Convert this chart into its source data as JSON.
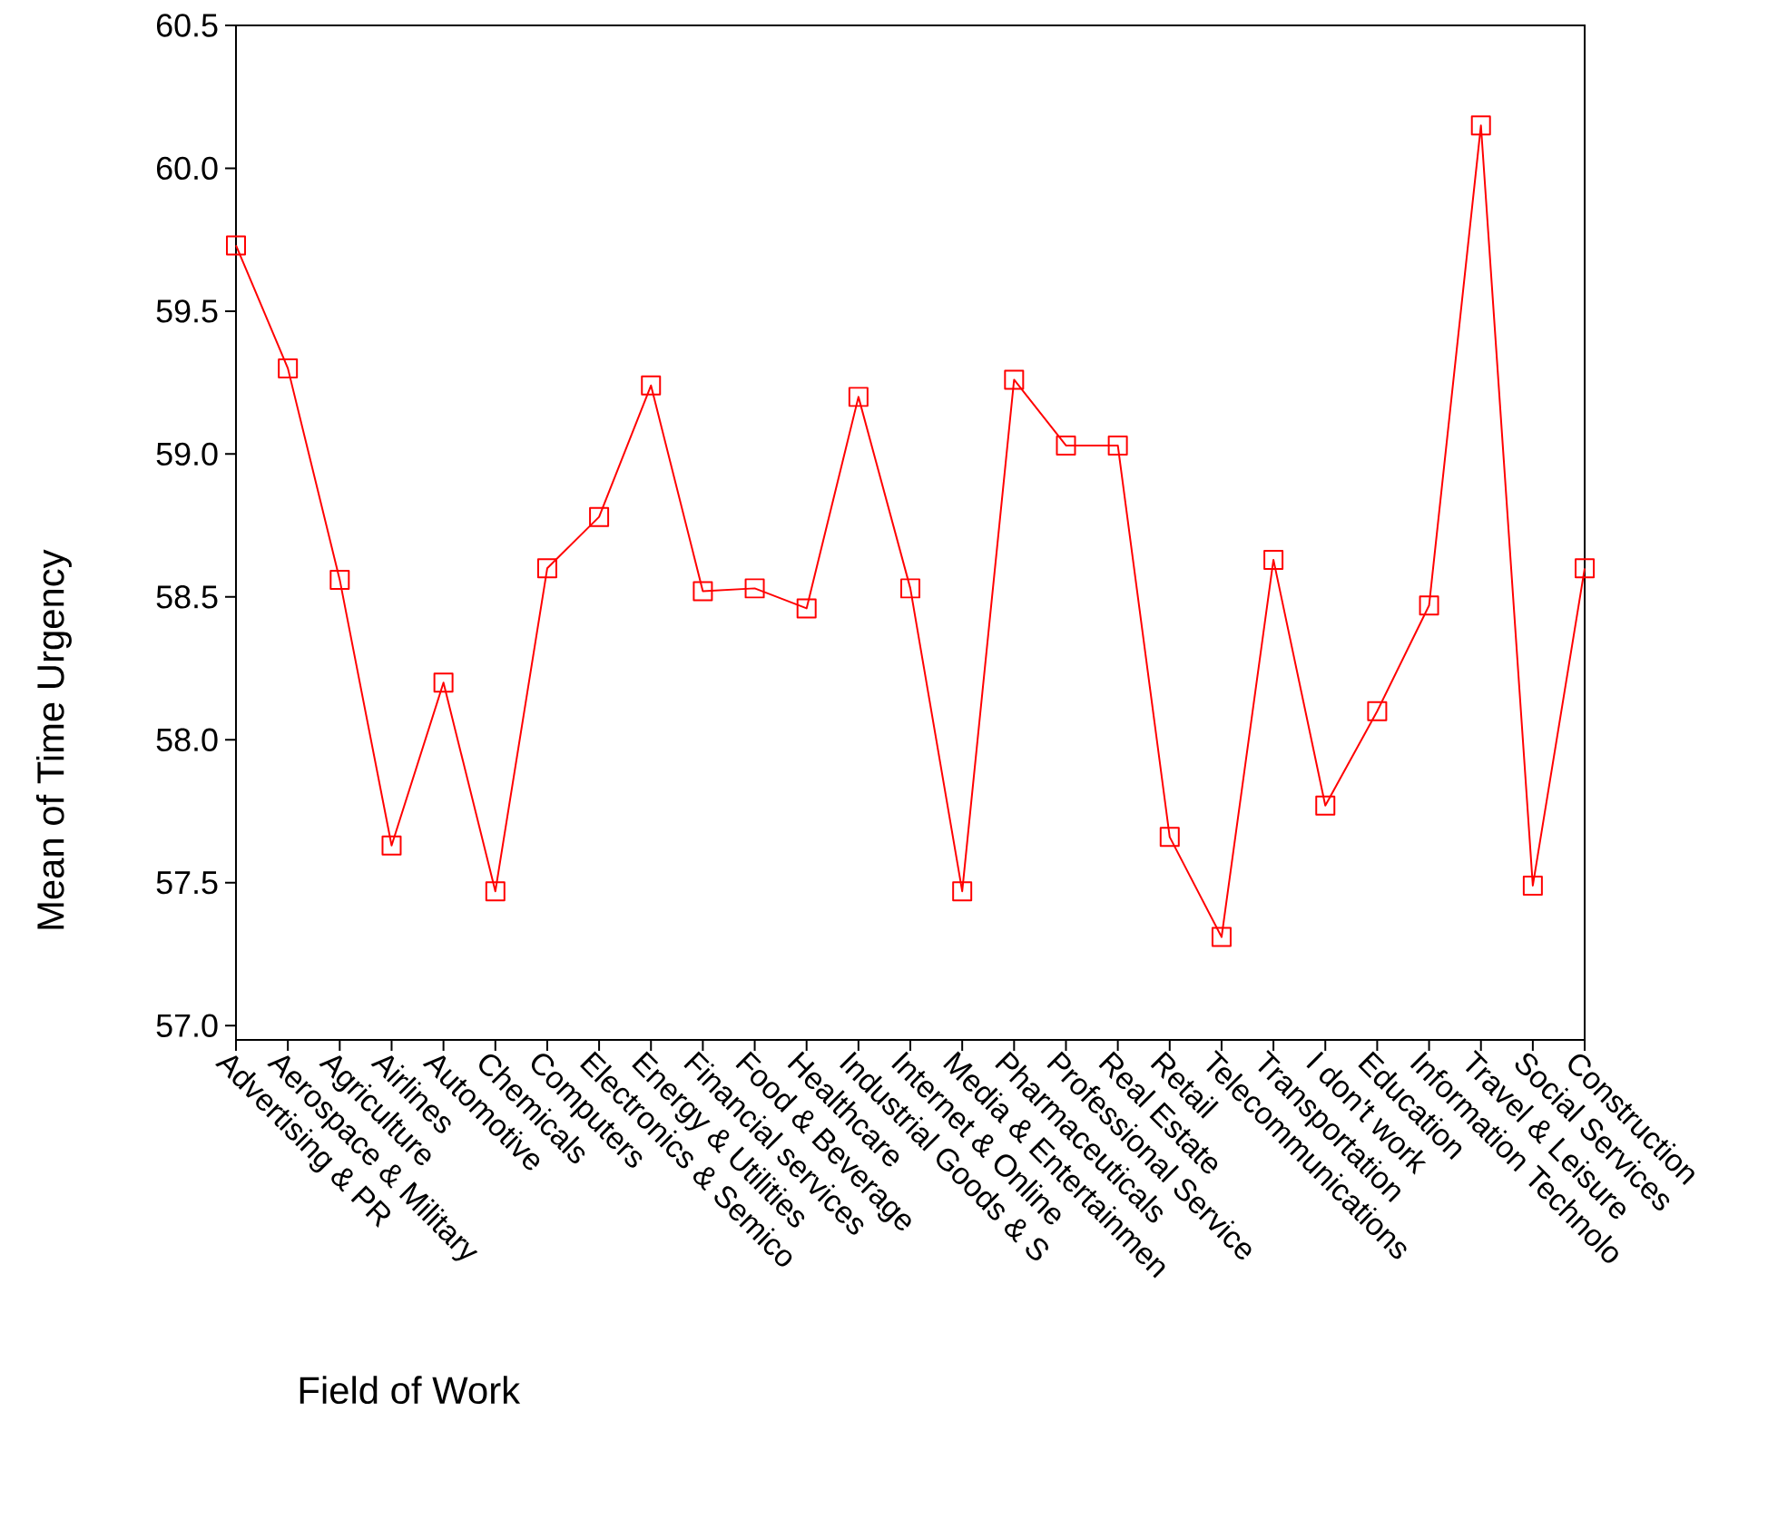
{
  "chart_data": {
    "type": "line",
    "xlabel": "Field of Work",
    "ylabel": "Mean of Time Urgency",
    "categories": [
      "Advertising & PR",
      "Aerospace & Military",
      "Agriculture",
      "Airlines",
      "Automotive",
      "Chemicals",
      "Computers",
      "Electronics & Semico",
      "Energy & Utilities",
      "Financial services",
      "Food & Beverage",
      "Healthcare",
      "Industrial Goods & S",
      "Internet & Online",
      "Media & Entertainmen",
      "Pharmaceuticals",
      "Professional Service",
      "Real Estate",
      "Retail",
      "Telecommunications",
      "Transportation",
      "I don't work",
      "Education",
      "Information Technolo",
      "Travel & Leisure",
      "Social Services",
      "Construction"
    ],
    "values": [
      59.73,
      59.3,
      58.56,
      57.63,
      58.2,
      57.47,
      58.6,
      58.78,
      59.24,
      58.52,
      58.53,
      58.46,
      59.2,
      58.53,
      57.47,
      59.26,
      59.03,
      59.03,
      57.66,
      57.31,
      58.63,
      57.77,
      58.1,
      58.47,
      60.15,
      57.49,
      58.6
    ],
    "color": "#ff0000",
    "marker": "square",
    "ylim": [
      56.95,
      60.5
    ],
    "yticks": [
      {
        "value": 57.0,
        "label": "57.0"
      },
      {
        "value": 57.5,
        "label": "57.5"
      },
      {
        "value": 58.0,
        "label": "58.0"
      },
      {
        "value": 58.5,
        "label": "58.5"
      },
      {
        "value": 59.0,
        "label": "59.0"
      },
      {
        "value": 59.5,
        "label": "59.5"
      },
      {
        "value": 60.0,
        "label": "60.0"
      },
      {
        "value": 60.5,
        "label": "60.5"
      }
    ]
  }
}
